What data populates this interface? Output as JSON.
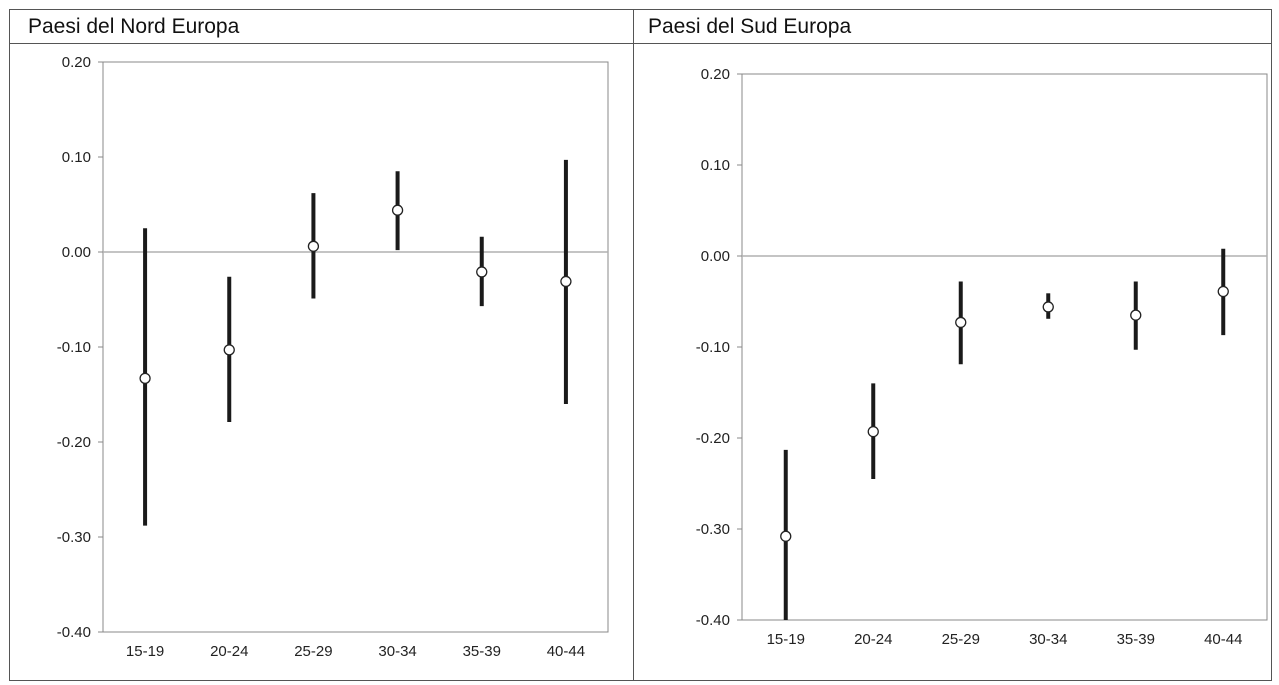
{
  "chart_data": [
    {
      "type": "errorbar",
      "title": "Paesi del Nord Europa",
      "categories": [
        "15-19",
        "20-24",
        "25-29",
        "30-34",
        "35-39",
        "40-44"
      ],
      "estimates": [
        -0.133,
        -0.103,
        0.006,
        0.044,
        -0.021,
        -0.031
      ],
      "lower": [
        -0.288,
        -0.179,
        -0.049,
        0.002,
        -0.057,
        -0.16
      ],
      "upper": [
        0.025,
        -0.026,
        0.062,
        0.085,
        0.016,
        0.097
      ],
      "yticks": [
        "0.20",
        "0.10",
        "0.00",
        "-0.10",
        "-0.20",
        "-0.30",
        "-0.40"
      ],
      "ylim": [
        -0.4,
        0.2
      ],
      "reference_line": 0.0,
      "colors": {
        "bar": "#1a1a1a",
        "marker_fill": "#ffffff",
        "axes": "#888888"
      }
    },
    {
      "type": "errorbar",
      "title": "Paesi del Sud Europa",
      "categories": [
        "15-19",
        "20-24",
        "25-29",
        "30-34",
        "35-39",
        "40-44"
      ],
      "estimates": [
        -0.308,
        -0.193,
        -0.073,
        -0.056,
        -0.065,
        -0.039
      ],
      "lower": [
        -0.4,
        -0.245,
        -0.119,
        -0.069,
        -0.103,
        -0.087
      ],
      "upper": [
        -0.213,
        -0.14,
        -0.028,
        -0.041,
        -0.028,
        0.008
      ],
      "yticks": [
        "0.20",
        "0.10",
        "0.00",
        "-0.10",
        "-0.20",
        "-0.30",
        "-0.40"
      ],
      "ylim": [
        -0.4,
        0.2
      ],
      "reference_line": 0.0,
      "colors": {
        "bar": "#1a1a1a",
        "marker_fill": "#ffffff",
        "axes": "#888888"
      }
    }
  ]
}
